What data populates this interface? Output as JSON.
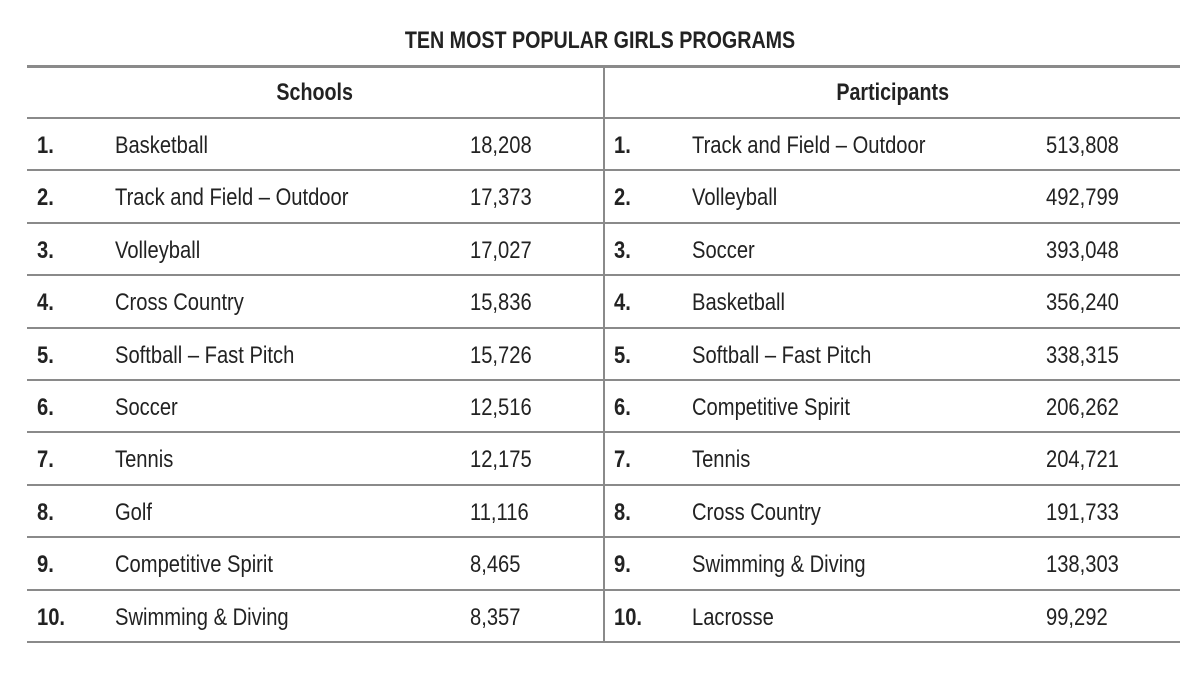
{
  "title": "TEN MOST POPULAR GIRLS PROGRAMS",
  "headers": {
    "schools": "Schools",
    "participants": "Participants"
  },
  "colors": {
    "rule": "#8a8a8a",
    "text": "#222222"
  },
  "schools": [
    {
      "rank": "1.",
      "sport": "Basketball",
      "value": "18,208"
    },
    {
      "rank": "2.",
      "sport": "Track and Field – Outdoor",
      "value": "17,373"
    },
    {
      "rank": "3.",
      "sport": "Volleyball",
      "value": "17,027"
    },
    {
      "rank": "4.",
      "sport": "Cross Country",
      "value": "15,836"
    },
    {
      "rank": "5.",
      "sport": "Softball – Fast Pitch",
      "value": "15,726"
    },
    {
      "rank": "6.",
      "sport": "Soccer",
      "value": "12,516"
    },
    {
      "rank": "7.",
      "sport": "Tennis",
      "value": "12,175"
    },
    {
      "rank": "8.",
      "sport": "Golf",
      "value": "11,116"
    },
    {
      "rank": "9.",
      "sport": "Competitive Spirit",
      "value": "8,465"
    },
    {
      "rank": "10.",
      "sport": "Swimming & Diving",
      "value": "8,357"
    }
  ],
  "participants": [
    {
      "rank": "1.",
      "sport": "Track and Field – Outdoor",
      "value": "513,808"
    },
    {
      "rank": "2.",
      "sport": "Volleyball",
      "value": "492,799"
    },
    {
      "rank": "3.",
      "sport": "Soccer",
      "value": "393,048"
    },
    {
      "rank": "4.",
      "sport": "Basketball",
      "value": "356,240"
    },
    {
      "rank": "5.",
      "sport": "Softball – Fast Pitch",
      "value": "338,315"
    },
    {
      "rank": "6.",
      "sport": "Competitive Spirit",
      "value": "206,262"
    },
    {
      "rank": "7.",
      "sport": "Tennis",
      "value": "204,721"
    },
    {
      "rank": "8.",
      "sport": "Cross Country",
      "value": "191,733"
    },
    {
      "rank": "9.",
      "sport": "Swimming & Diving",
      "value": "138,303"
    },
    {
      "rank": "10.",
      "sport": "Lacrosse",
      "value": "99,292"
    }
  ]
}
